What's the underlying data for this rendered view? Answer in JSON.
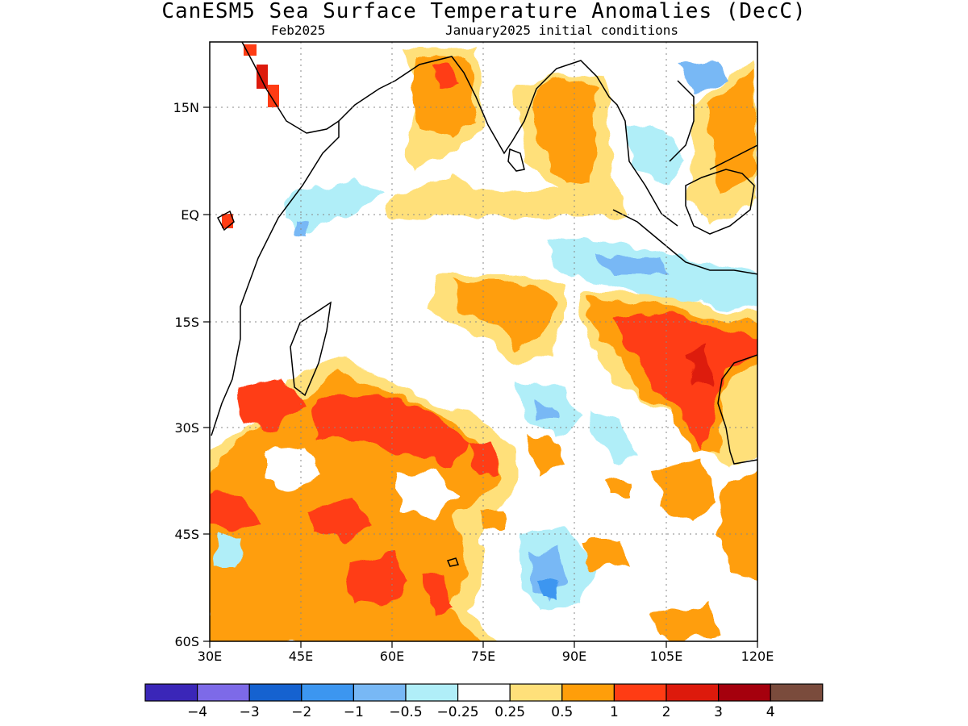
{
  "title": "CanESM5 Sea Surface Temperature Anomalies (DecC)",
  "subtitle_left": "Feb2025",
  "subtitle_right": "January2025 initial conditions",
  "map": {
    "lat_ticks": [
      "15N",
      "EQ",
      "15S",
      "30S",
      "45S",
      "60S"
    ],
    "lon_ticks": [
      "30E",
      "45E",
      "60E",
      "75E",
      "90E",
      "105E",
      "120E"
    ],
    "lon_range": [
      30,
      120
    ],
    "lat_range": [
      -60,
      24
    ],
    "grid": "dotted"
  },
  "colorbar": {
    "colors": [
      "#3a26b8",
      "#7d6ae8",
      "#1562d0",
      "#3c96f0",
      "#78b8f5",
      "#b0eef8",
      "#ffffff",
      "#ffe07a",
      "#ff9e0a",
      "#ff3c14",
      "#dd1a0c",
      "#a5000d",
      "#7a4b3c"
    ],
    "labels": [
      "−4",
      "−3",
      "−2",
      "−1",
      "−0.5",
      "−0.25",
      "0.25",
      "0.5",
      "1",
      "2",
      "3",
      "4"
    ]
  }
}
